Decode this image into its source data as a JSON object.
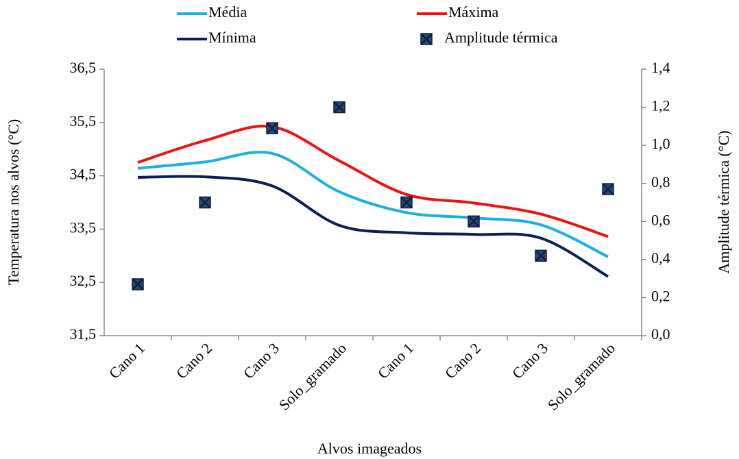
{
  "chart_data": {
    "type": "line",
    "xlabel": "Alvos imageados",
    "ylabel": "Temperatura nos alvos (°C)",
    "y2label": "Amplitude térmica (°C)",
    "categories": [
      "Cano 1",
      "Cano 2",
      "Cano 3",
      "Solo_gramado",
      "Cano 1",
      "Cano 2",
      "Cano 3",
      "Solo_gramado"
    ],
    "series": [
      {
        "name": "Média",
        "color": "#1aafe6",
        "type": "line",
        "values": [
          34.64,
          34.76,
          34.92,
          34.2,
          33.81,
          33.71,
          33.58,
          32.98
        ]
      },
      {
        "name": "Máxima",
        "color": "#ee1111",
        "type": "line",
        "values": [
          34.75,
          35.16,
          35.42,
          34.78,
          34.15,
          33.99,
          33.78,
          33.36
        ]
      },
      {
        "name": "Mínima",
        "color": "#0c1f52",
        "type": "line",
        "values": [
          34.47,
          34.48,
          34.31,
          33.57,
          33.43,
          33.4,
          33.33,
          32.61
        ]
      },
      {
        "name": "Amplitude térmica",
        "color": "#24497a",
        "type": "scatter",
        "axis": "y2",
        "values": [
          0.27,
          0.7,
          1.09,
          1.2,
          0.7,
          0.6,
          0.42,
          0.77
        ]
      }
    ],
    "ylim": [
      31.5,
      36.5
    ],
    "yticks": [
      {
        "value": 31.5,
        "label": "31,5"
      },
      {
        "value": 32.5,
        "label": "32,5"
      },
      {
        "value": 33.5,
        "label": "33,5"
      },
      {
        "value": 34.5,
        "label": "34,5"
      },
      {
        "value": 35.5,
        "label": "35,5"
      },
      {
        "value": 36.5,
        "label": "36,5"
      }
    ],
    "y2lim": [
      0,
      1.4
    ],
    "y2ticks": [
      {
        "value": 0,
        "label": "0,0"
      },
      {
        "value": 0.2,
        "label": "0,2"
      },
      {
        "value": 0.4,
        "label": "0,4"
      },
      {
        "value": 0.6,
        "label": "0,6"
      },
      {
        "value": 0.8,
        "label": "0,8"
      },
      {
        "value": 1.0,
        "label": "1,0"
      },
      {
        "value": 1.2,
        "label": "1,2"
      },
      {
        "value": 1.4,
        "label": "1,4"
      }
    ],
    "grid": false,
    "legend": "top"
  }
}
